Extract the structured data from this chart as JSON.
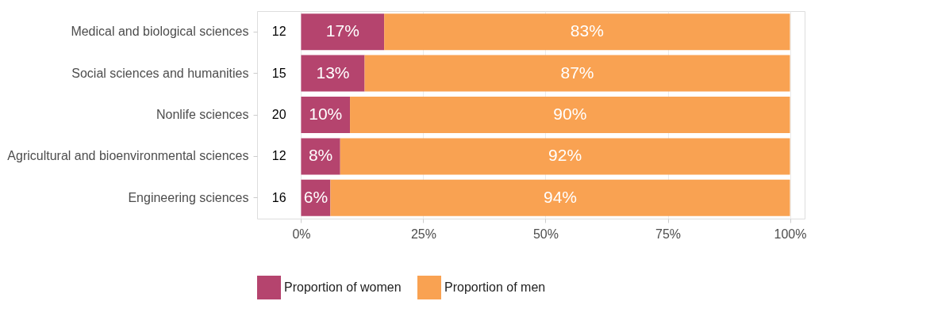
{
  "chart_data": {
    "type": "bar",
    "orientation": "horizontal",
    "stacked": true,
    "categories": [
      "Medical and biological sciences",
      "Social sciences and humanities",
      "Nonlife sciences",
      "Agricultural and bioenvironmental sciences",
      "Engineering sciences"
    ],
    "series": [
      {
        "name": "Proportion of women",
        "color": "#b5446e",
        "values": [
          17,
          13,
          10,
          8,
          6
        ],
        "value_labels": [
          "17%",
          "13%",
          "10%",
          "8%",
          "6%"
        ]
      },
      {
        "name": "Proportion of men",
        "color": "#f9a252",
        "values": [
          83,
          87,
          90,
          92,
          94
        ],
        "value_labels": [
          "83%",
          "87%",
          "90%",
          "92%",
          "94%"
        ]
      }
    ],
    "xlim": [
      -9,
      103
    ],
    "xticks": [
      {
        "value": 0,
        "label": "0%"
      },
      {
        "value": 25,
        "label": "25%"
      },
      {
        "value": 50,
        "label": "50%"
      },
      {
        "value": 75,
        "label": "75%"
      },
      {
        "value": 100,
        "label": "100%"
      }
    ],
    "annotations": [
      "12",
      "15",
      "20",
      "12",
      "16"
    ],
    "grid": "x",
    "legend": "bottom"
  }
}
